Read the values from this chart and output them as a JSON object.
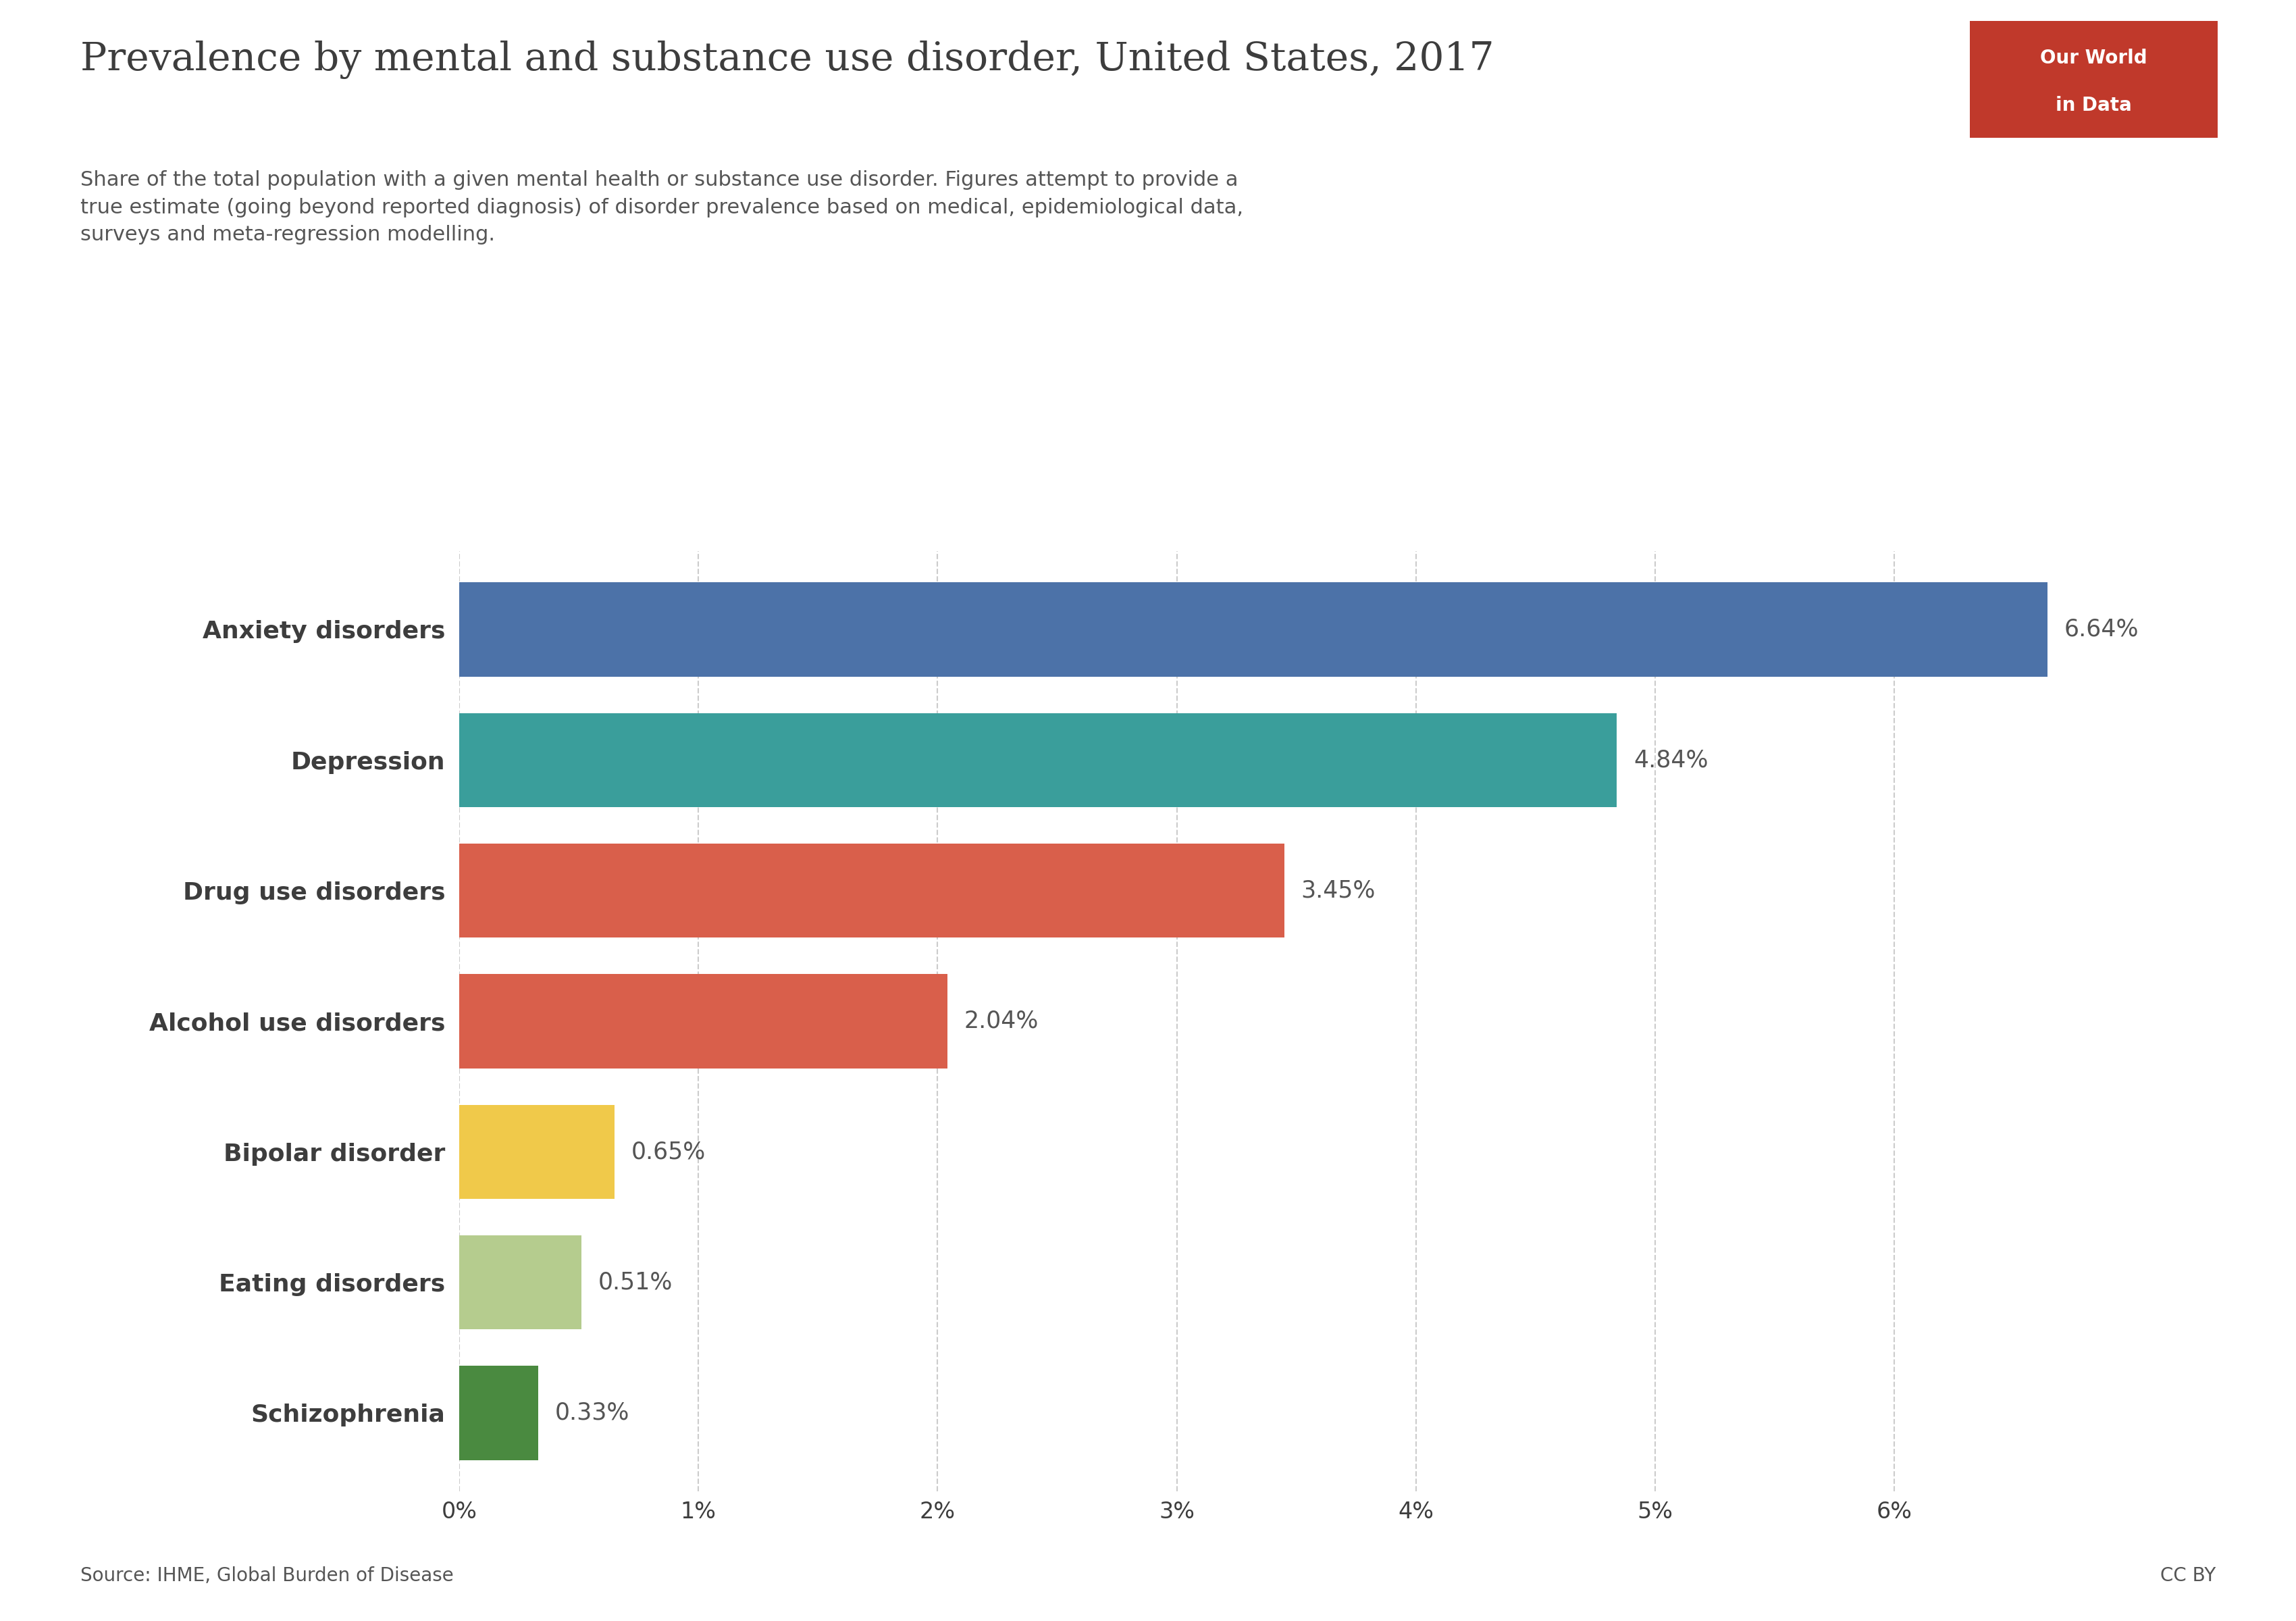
{
  "title": "Prevalence by mental and substance use disorder, United States, 2017",
  "subtitle": "Share of the total population with a given mental health or substance use disorder. Figures attempt to provide a\ntrue estimate (going beyond reported diagnosis) of disorder prevalence based on medical, epidemiological data,\nsurveys and meta-regression modelling.",
  "categories": [
    "Anxiety disorders",
    "Depression",
    "Drug use disorders",
    "Alcohol use disorders",
    "Bipolar disorder",
    "Eating disorders",
    "Schizophrenia"
  ],
  "values": [
    6.64,
    4.84,
    3.45,
    2.04,
    0.65,
    0.51,
    0.33
  ],
  "bar_colors": [
    "#4c72a8",
    "#3a9e9b",
    "#d95f4b",
    "#d95f4b",
    "#f0c94a",
    "#b5cc8e",
    "#4a8a40"
  ],
  "value_labels": [
    "6.64%",
    "4.84%",
    "3.45%",
    "2.04%",
    "0.65%",
    "0.51%",
    "0.33%"
  ],
  "xlim": [
    0,
    7.2
  ],
  "xticks": [
    0,
    1,
    2,
    3,
    4,
    5,
    6
  ],
  "xtick_labels": [
    "0%",
    "1%",
    "2%",
    "3%",
    "4%",
    "5%",
    "6%"
  ],
  "source_text": "Source: IHME, Global Burden of Disease",
  "cc_text": "CC BY",
  "title_color": "#3d3d3d",
  "subtitle_color": "#555555",
  "label_color": "#3d3d3d",
  "value_label_color": "#555555",
  "background_color": "#ffffff",
  "grid_color": "#cccccc",
  "owid_box_color": "#c0392b",
  "owid_text_line1": "Our World",
  "owid_text_line2": "in Data",
  "title_fontsize": 42,
  "subtitle_fontsize": 22,
  "category_fontsize": 26,
  "value_fontsize": 25,
  "tick_fontsize": 24,
  "source_fontsize": 20,
  "bar_height": 0.72
}
